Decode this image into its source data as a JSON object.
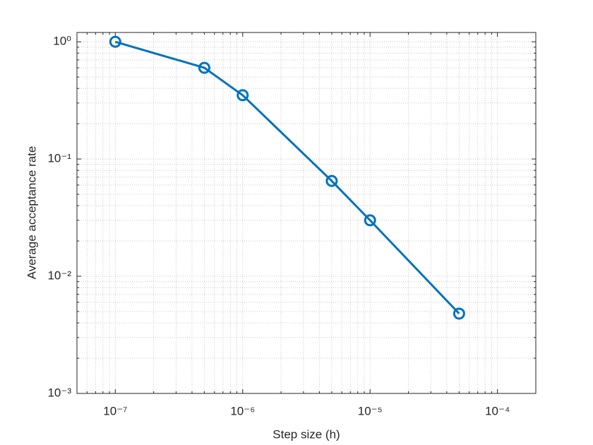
{
  "chart_data": {
    "type": "line",
    "x_label": "Step size (h)",
    "y_label": "Average acceptance rate",
    "x": [
      1e-07,
      5e-07,
      1e-06,
      5e-06,
      1e-05,
      5e-05
    ],
    "values": [
      1.0,
      0.6,
      0.35,
      0.065,
      0.03,
      0.0048
    ],
    "color": "#0072bd",
    "xscale": "log",
    "yscale": "log",
    "xlim": [
      5e-08,
      0.0002
    ],
    "ylim": [
      0.001,
      1.2
    ],
    "xticks": [
      {
        "value": 1e-07,
        "label": "10⁻⁷"
      },
      {
        "value": 1e-06,
        "label": "10⁻⁶"
      },
      {
        "value": 1e-05,
        "label": "10⁻⁵"
      },
      {
        "value": 0.0001,
        "label": "10⁻⁴"
      }
    ],
    "yticks": [
      {
        "value": 0.001,
        "label": "10⁻³"
      },
      {
        "value": 0.01,
        "label": "10⁻²"
      },
      {
        "value": 0.1,
        "label": "10⁻¹"
      },
      {
        "value": 1,
        "label": "10⁰"
      }
    ],
    "grid": true,
    "minor_grid": true,
    "markers": "circle"
  }
}
